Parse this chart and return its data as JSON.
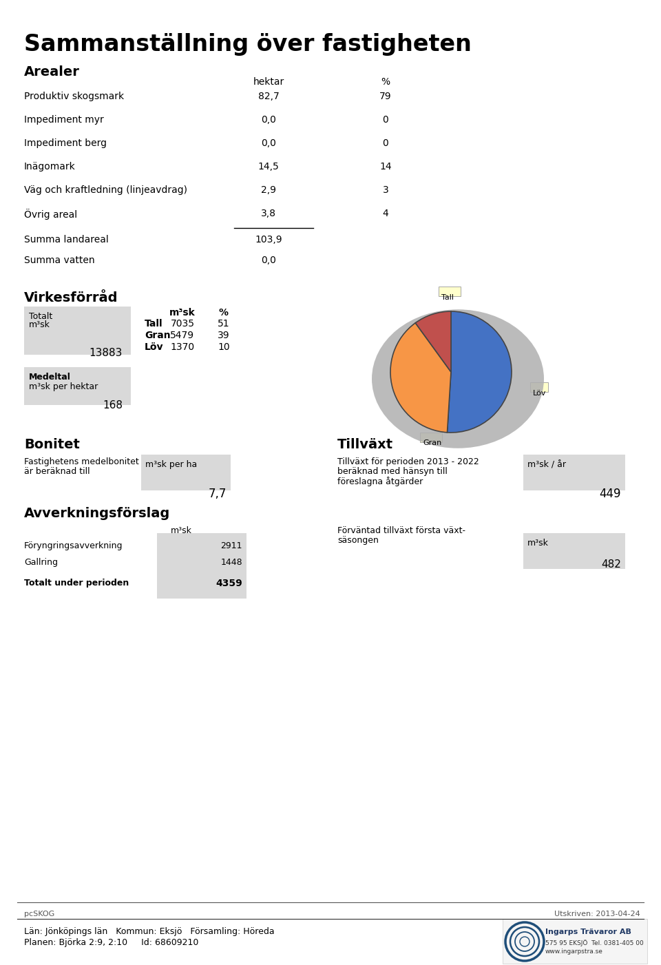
{
  "title": "Sammanställning över fastigheten",
  "section_arealer": "Arealer",
  "col_hektar": "hektar",
  "col_percent": "%",
  "arealer_rows": [
    [
      "Produktiv skogsmark",
      "82,7",
      "79"
    ],
    [
      "Impediment myr",
      "0,0",
      "0"
    ],
    [
      "Impediment berg",
      "0,0",
      "0"
    ],
    [
      "Inägomark",
      "14,5",
      "14"
    ],
    [
      "Väg och kraftledning (linjeavdrag)",
      "2,9",
      "3"
    ],
    [
      "Övrig areal",
      "3,8",
      "4"
    ]
  ],
  "summa_landareal_label": "Summa landareal",
  "summa_landareal_val": "103,9",
  "summa_vatten_label": "Summa vatten",
  "summa_vatten_val": "0,0",
  "section_virkesforrad": "Virkesförråd",
  "totalt_label": "Totalt",
  "totalt_unit": "m³sk",
  "totalt_val": "13883",
  "virkes_col1": "m³sk",
  "virkes_col2": "%",
  "virkes_rows": [
    [
      "Tall",
      "7035",
      "51"
    ],
    [
      "Gran",
      "5479",
      "39"
    ],
    [
      "Löv",
      "1370",
      "10"
    ]
  ],
  "medeltal_label": "Medeltal",
  "medeltal_unit": "m³sk per hektar",
  "medeltal_val": "168",
  "pie_values": [
    51,
    39,
    10
  ],
  "pie_colors": [
    "#4472C4",
    "#F79646",
    "#C0504D"
  ],
  "pie_labels": [
    "Tall",
    "Gran",
    "Löv"
  ],
  "section_bonitet": "Bonitet",
  "bonitet_desc": "Fastighetens medelbonitet\när beräknad till",
  "bonitet_unit": "m³sk per ha",
  "bonitet_val": "7,7",
  "section_tillvaxt": "Tillväxt",
  "tillvaxt_desc": "Tillväxt för perioden 2013 - 2022\nberäknad med hänsyn till\nföreslagna åtgärder",
  "tillvaxt_unit": "m³sk / år",
  "tillvaxt_val": "449",
  "section_avverkning": "Avverkningsförslag",
  "avverkning_unit": "m³sk",
  "avverkning_rows": [
    [
      "Föryngringsavverkning",
      "2911"
    ],
    [
      "Gallring",
      "1448"
    ]
  ],
  "avverkning_total_label": "Totalt under perioden",
  "avverkning_total_val": "4359",
  "forvantad_label": "Förväntad tillväxt första växt-\nsäsongen",
  "forvantad_unit": "m³sk",
  "forvantad_val": "482",
  "footer_left": "pcSKOG",
  "footer_right": "Utskriven: 2013-04-24",
  "footer_line1": "Län: Jönköpings län   Kommun: Eksjö   Församling: Höreda",
  "footer_line2": "Planen: Björka 2:9, 2:10     Id: 68609210",
  "bg_color": "#ffffff",
  "box_color": "#D9D9D9"
}
